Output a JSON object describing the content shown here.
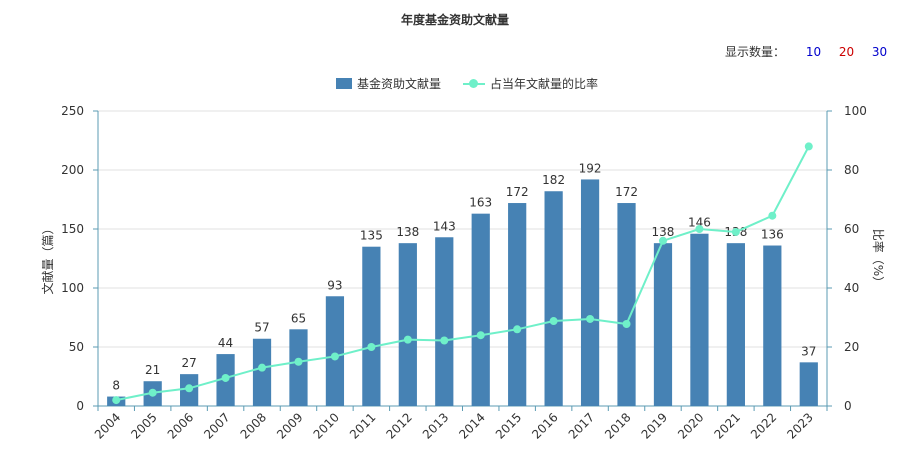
{
  "chart_data": {
    "type": "bar",
    "title": "年度基金资助文献量",
    "categories": [
      "2004",
      "2005",
      "2006",
      "2007",
      "2008",
      "2009",
      "2010",
      "2011",
      "2012",
      "2013",
      "2014",
      "2015",
      "2016",
      "2017",
      "2018",
      "2019",
      "2020",
      "2021",
      "2022",
      "2023"
    ],
    "series": [
      {
        "name": "基金资助文献量",
        "type": "bar",
        "axis": "left",
        "color": "#4682b4",
        "values": [
          8,
          21,
          27,
          44,
          57,
          65,
          93,
          135,
          138,
          143,
          163,
          172,
          182,
          192,
          172,
          138,
          146,
          138,
          136,
          37
        ]
      },
      {
        "name": "占当年文献量的比率",
        "type": "line",
        "axis": "right",
        "color": "#6ff0c9",
        "values": [
          2,
          4.5,
          6,
          9.5,
          13,
          15,
          16.8,
          20,
          22.5,
          22.2,
          24,
          26,
          28.8,
          29.5,
          27.8,
          56,
          60,
          59,
          64.5,
          88
        ]
      }
    ],
    "ylabel": "文献量（篇）",
    "ylabel_right": "比率（%）",
    "ylim": [
      0,
      250
    ],
    "yticks": [
      0,
      50,
      100,
      150,
      200,
      250
    ],
    "ylim_right": [
      0,
      100
    ],
    "yticks_right": [
      0,
      20,
      40,
      60,
      80,
      100
    ],
    "grid": true,
    "legend_position": "top-center"
  },
  "controls": {
    "count_label": "显示数量：",
    "options": [
      {
        "label": "10",
        "color": "#0000cc"
      },
      {
        "label": "20",
        "color": "#cc0000"
      },
      {
        "label": "30",
        "color": "#0000cc"
      }
    ]
  }
}
